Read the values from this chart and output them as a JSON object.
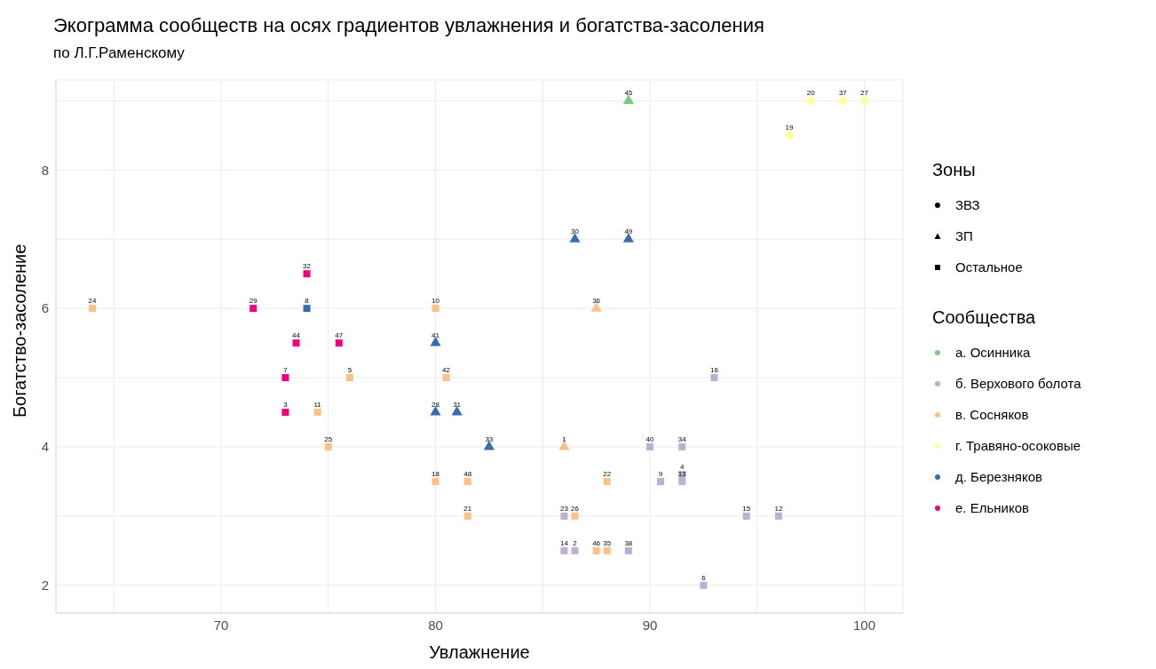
{
  "chart_data": {
    "type": "scatter",
    "title": "Экограмма сообществ на осях градиентов увлажнения и богатства-засоления",
    "subtitle": "по Л.Г.Раменскому",
    "xlabel": "Увлажнение",
    "ylabel": "Богатство-засоление",
    "legend_title": [
      "Зоны",
      "Сообщества"
    ],
    "legend": "right",
    "grid": true,
    "xlim": [
      62.3,
      101.8
    ],
    "ylim": [
      1.6,
      9.3
    ],
    "xticks": [
      {
        "value": 65,
        "label": null
      },
      70,
      {
        "value": 75,
        "label": null
      },
      80,
      {
        "value": 85,
        "label": null
      },
      90,
      {
        "value": 95,
        "label": null
      },
      100
    ],
    "yticks": [
      {
        "value": 3,
        "label": null
      },
      2,
      4,
      {
        "value": 5,
        "label": null
      },
      6,
      {
        "value": 7,
        "label": null
      },
      8,
      {
        "value": 9,
        "label": null
      }
    ],
    "series": [
      {
        "name": "ЗВЗ",
        "color": "#000000",
        "marker": "circle"
      },
      {
        "name": "ЗП",
        "color": "#000000",
        "marker": "triangle"
      },
      {
        "name": "Остальное",
        "color": "#000000",
        "marker": "square"
      },
      {
        "name": "а. Осинника",
        "color": "#7fc97f",
        "marker": "triangle",
        "x": [
          89
        ],
        "values": [
          9
        ]
      },
      {
        "name": "б. Верхового болота",
        "color": "#beaed4",
        "marker": "square",
        "x": [
          90,
          91.5,
          93,
          90.5,
          91.5,
          91.5,
          86,
          94.5,
          96,
          86,
          86.5,
          89,
          92.5
        ],
        "values": [
          4,
          4,
          5,
          3.5,
          3.6,
          3.5,
          3,
          3,
          3,
          2.5,
          2.5,
          2.5,
          2
        ]
      },
      {
        "name": "в. Сосняков",
        "color": "#fdc086",
        "marker": "square",
        "x": [
          64,
          76,
          74.5,
          80,
          80.5,
          75,
          80,
          81.5,
          81.5,
          88,
          86.5,
          87.5,
          88
        ],
        "values": [
          6,
          5,
          4.5,
          6,
          5,
          4,
          3.5,
          3.5,
          3,
          3.5,
          3,
          2.5,
          2.5
        ]
      },
      {
        "color": "#fdc086",
        "marker": "triangle",
        "x": [
          86,
          87.5
        ],
        "values": [
          4,
          6
        ]
      },
      {
        "name": "г. Травяно-осоковые",
        "color": "#ffff99",
        "marker": "circle",
        "x": [
          97.5,
          99,
          100,
          96.5
        ],
        "values": [
          9,
          9,
          9,
          8.5
        ]
      },
      {
        "name": "д. Березняков",
        "color": "#386cb0",
        "marker": "square",
        "x": [
          74
        ],
        "values": [
          6
        ]
      },
      {
        "color": "#386cb0",
        "marker": "triangle",
        "x": [
          80,
          80,
          81,
          82.5,
          86.5,
          89
        ],
        "values": [
          5.5,
          4.5,
          4.5,
          4,
          7,
          7
        ]
      },
      {
        "name": "е. Ельников",
        "color": "#f0027f",
        "marker": "square",
        "x": [
          71.5,
          74,
          73.5,
          75.5,
          73,
          73
        ],
        "values": [
          6,
          6.5,
          5.5,
          5.5,
          5,
          4.5
        ]
      }
    ],
    "annotations": [
      {
        "text": "45",
        "x": 89,
        "y": 9
      },
      {
        "text": "40",
        "x": 90,
        "y": 4
      },
      {
        "text": "34",
        "x": 91.5,
        "y": 4
      },
      {
        "text": "16",
        "x": 93,
        "y": 5
      },
      {
        "text": "9",
        "x": 90.5,
        "y": 3.5
      },
      {
        "text": "4",
        "x": 91.5,
        "y": 3.6
      },
      {
        "text": "13",
        "x": 91.5,
        "y": 3.5
      },
      {
        "text": "23",
        "x": 86,
        "y": 3
      },
      {
        "text": "15",
        "x": 94.5,
        "y": 3
      },
      {
        "text": "12",
        "x": 96,
        "y": 3
      },
      {
        "text": "14",
        "x": 86,
        "y": 2.5
      },
      {
        "text": "2",
        "x": 86.5,
        "y": 2.5
      },
      {
        "text": "38",
        "x": 89,
        "y": 2.5
      },
      {
        "text": "6",
        "x": 92.5,
        "y": 2
      },
      {
        "text": "24",
        "x": 64,
        "y": 6
      },
      {
        "text": "5",
        "x": 76,
        "y": 5
      },
      {
        "text": "11",
        "x": 74.5,
        "y": 4.5
      },
      {
        "text": "10",
        "x": 80,
        "y": 6
      },
      {
        "text": "42",
        "x": 80.5,
        "y": 5
      },
      {
        "text": "25",
        "x": 75,
        "y": 4
      },
      {
        "text": "18",
        "x": 80,
        "y": 3.5
      },
      {
        "text": "48",
        "x": 81.5,
        "y": 3.5
      },
      {
        "text": "21",
        "x": 81.5,
        "y": 3
      },
      {
        "text": "22",
        "x": 88,
        "y": 3.5
      },
      {
        "text": "26",
        "x": 86.5,
        "y": 3
      },
      {
        "text": "46",
        "x": 87.5,
        "y": 2.5
      },
      {
        "text": "35",
        "x": 88,
        "y": 2.5
      },
      {
        "text": "1",
        "x": 86,
        "y": 4
      },
      {
        "text": "36",
        "x": 87.5,
        "y": 6
      },
      {
        "text": "20",
        "x": 97.5,
        "y": 9
      },
      {
        "text": "37",
        "x": 99,
        "y": 9
      },
      {
        "text": "27",
        "x": 100,
        "y": 9
      },
      {
        "text": "19",
        "x": 96.5,
        "y": 8.5
      },
      {
        "text": "8",
        "x": 74,
        "y": 6
      },
      {
        "text": "41",
        "x": 80,
        "y": 5.5
      },
      {
        "text": "28",
        "x": 80,
        "y": 4.5
      },
      {
        "text": "31",
        "x": 81,
        "y": 4.5
      },
      {
        "text": "33",
        "x": 82.5,
        "y": 4
      },
      {
        "text": "30",
        "x": 86.5,
        "y": 7
      },
      {
        "text": "49",
        "x": 89,
        "y": 7
      },
      {
        "text": "29",
        "x": 71.5,
        "y": 6
      },
      {
        "text": "32",
        "x": 74,
        "y": 6.5
      },
      {
        "text": "44",
        "x": 73.5,
        "y": 5.5
      },
      {
        "text": "47",
        "x": 75.5,
        "y": 5.5
      },
      {
        "text": "7",
        "x": 73,
        "y": 5
      },
      {
        "text": "3",
        "x": 73,
        "y": 4.5
      }
    ]
  }
}
